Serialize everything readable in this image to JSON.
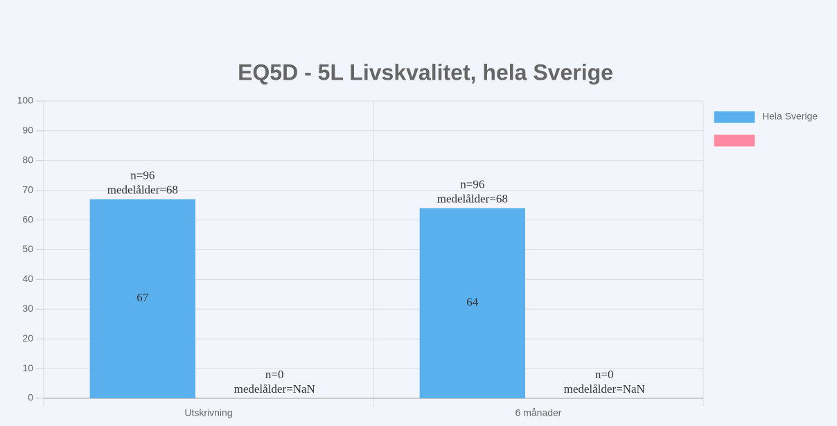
{
  "chart_data": {
    "type": "bar",
    "title": "EQ5D - 5L Livskvalitet, hela Sverige",
    "categories": [
      "Utskrivning",
      "6 månader"
    ],
    "series": [
      {
        "name": "Hela Sverige",
        "color": "#5ab0ec",
        "values": [
          67,
          64
        ],
        "annotations": [
          [
            "n=96",
            "medelålder=68"
          ],
          [
            "n=96",
            "medelålder=68"
          ]
        ]
      },
      {
        "color": "#ff88a3",
        "values": [
          null,
          null
        ],
        "annotations": [
          [
            "n=0",
            "medelålder=NaN"
          ],
          [
            "n=0",
            "medelålder=NaN"
          ]
        ]
      }
    ],
    "ylim": [
      0,
      100
    ],
    "yticks": [
      0,
      10,
      20,
      30,
      40,
      50,
      60,
      70,
      80,
      90,
      100
    ],
    "grid": true,
    "legend": "right"
  }
}
